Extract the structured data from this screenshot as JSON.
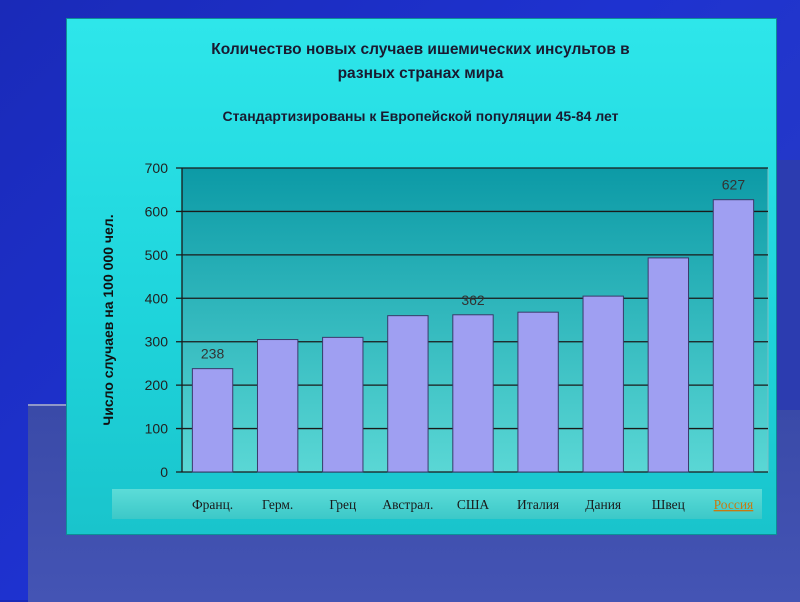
{
  "chart_data": {
    "type": "bar",
    "title": "Количество новых случаев ишемических инсультов в разных странах мира",
    "title_lines": [
      "Количество новых случаев ишемических инсультов в",
      "разных странах мира"
    ],
    "subtitle": "Стандартизированы к Европейской популяции 45-84 лет",
    "ylabel": "Число случаев на 100 000 чел.",
    "xlabel": "",
    "ylim": [
      0,
      700
    ],
    "yticks": [
      0,
      100,
      200,
      300,
      400,
      500,
      600,
      700
    ],
    "categories": [
      "Франц.",
      "Герм.",
      "Грец",
      "Австрал.",
      "США",
      "Италия",
      "Дания",
      "Швец",
      "Россия"
    ],
    "values": [
      238,
      305,
      310,
      360,
      362,
      368,
      405,
      493,
      627
    ],
    "data_labels": [
      {
        "index": 0,
        "text": "238"
      },
      {
        "index": 4,
        "text": "362"
      },
      {
        "index": 8,
        "text": "627"
      }
    ],
    "grid": true,
    "colors": {
      "bar": "#9f9ff2",
      "bar_stroke": "#3a3a6a",
      "plot_bg_top": "#0c9aa6",
      "plot_bg_bottom": "#5ad7d5",
      "highlight_label": "#c87a10"
    },
    "highlight_category": "Россия"
  }
}
